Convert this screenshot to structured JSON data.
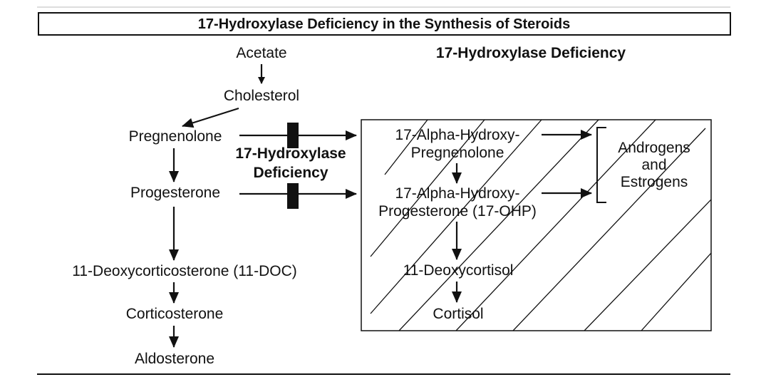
{
  "title": "17-Hydroxylase Deficiency in the Synthesis of Steroids",
  "legend_heading": "17-Hydroxylase Deficiency",
  "block_label": [
    "17-Hydroxylase",
    "Deficiency"
  ],
  "left_pathway": {
    "acetate": "Acetate",
    "cholesterol": "Cholesterol",
    "pregnenolone": "Pregnenolone",
    "progesterone": "Progesterone",
    "doc": "11-Deoxycorticosterone (11-DOC)",
    "corticosterone": "Corticosterone",
    "aldosterone": "Aldosterone"
  },
  "blocked_pathway": {
    "oh_preg": [
      "17-Alpha-Hydroxy-",
      "Pregnenolone"
    ],
    "oh_prog": [
      "17-Alpha-Hydroxy-",
      "Progesterone (17-OHP)"
    ],
    "deoxycortisol": "11-Deoxycortisol",
    "cortisol": "Cortisol"
  },
  "sex_steroids": [
    "Androgens",
    "and",
    "Estrogens"
  ]
}
